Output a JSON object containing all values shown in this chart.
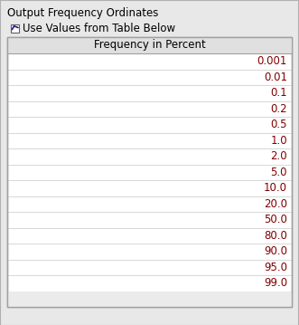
{
  "title": "Output Frequency Ordinates",
  "checkbox_label": "Use Values from Table Below",
  "col_header": "Frequency in Percent",
  "values": [
    "0.001",
    "0.01",
    "0.1",
    "0.2",
    "0.5",
    "1.0",
    "2.0",
    "5.0",
    "10.0",
    "20.0",
    "50.0",
    "80.0",
    "90.0",
    "95.0",
    "99.0"
  ],
  "panel_bg": "#e8e8e8",
  "table_bg": "#ffffff",
  "header_bg": "#e0e0e0",
  "border_color": "#a0a0a0",
  "title_color": "#000000",
  "header_text_color": "#000000",
  "value_text_color": "#800000",
  "font_size": 8.5,
  "header_font_size": 8.5,
  "title_font_size": 8.5,
  "panel_border_color": "#b0b0b0"
}
